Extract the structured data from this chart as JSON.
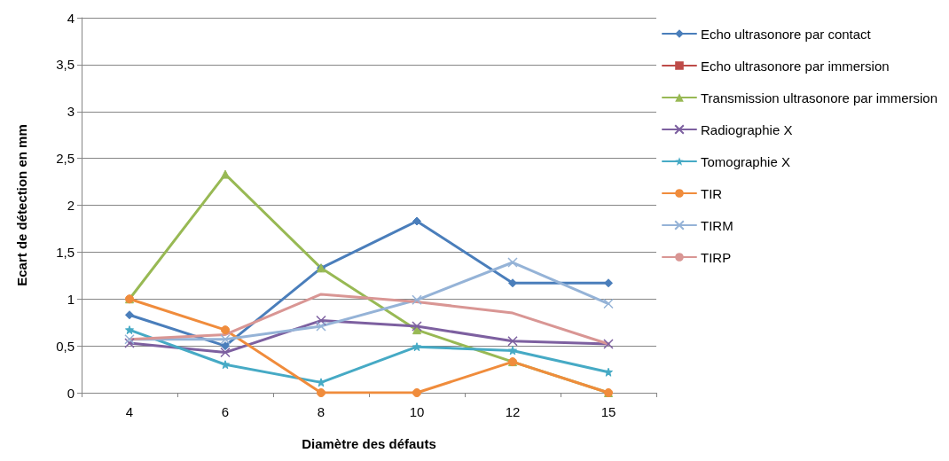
{
  "chart_data": {
    "type": "line",
    "xlabel": "Diamètre des défauts",
    "ylabel": "Ecart de détection en mm",
    "categories": [
      "4",
      "6",
      "8",
      "10",
      "12",
      "15"
    ],
    "ylim": [
      0,
      4
    ],
    "yticks": [
      0,
      {
        "value": 0.5,
        "label": "0,5"
      },
      1,
      {
        "value": 1.5,
        "label": "1,5"
      },
      2,
      {
        "value": 2.5,
        "label": "2,5"
      },
      3,
      {
        "value": 3.5,
        "label": "3,5"
      },
      4
    ],
    "grid": "y",
    "legend": "right",
    "series": [
      {
        "name": "Echo ultrasonore par contact",
        "color": "#4a7ebb",
        "marker": "diamond",
        "values": [
          0.83,
          0.5,
          1.33,
          1.83,
          1.17,
          1.17
        ]
      },
      {
        "name": "Echo ultrasonore par immersion",
        "color": "#be4b48",
        "marker": "square",
        "values": [
          null,
          null,
          null,
          null,
          null,
          null
        ]
      },
      {
        "name": "Transmission ultrasonore par immersion",
        "color": "#98b954",
        "marker": "triangle",
        "values": [
          1,
          2.33,
          1.33,
          0.67,
          0.33,
          0
        ]
      },
      {
        "name": "Radiographie X",
        "color": "#7d60a0",
        "marker": "cross",
        "values": [
          0.53,
          0.43,
          0.77,
          0.71,
          0.55,
          0.52
        ]
      },
      {
        "name": "Tomographie X",
        "color": "#46aac5",
        "marker": "star",
        "values": [
          0.67,
          0.3,
          0.11,
          0.49,
          0.45,
          0.22
        ]
      },
      {
        "name": "TIR",
        "color": "#f08c3c",
        "marker": "circle",
        "values": [
          1,
          0.67,
          0,
          0,
          0.33,
          0
        ]
      },
      {
        "name": "TIRM",
        "color": "#95b3d7",
        "marker": "cross",
        "values": [
          0.57,
          0.57,
          0.71,
          0.99,
          1.39,
          0.95
        ]
      },
      {
        "name": "TIRP",
        "color": "#d99694",
        "marker": "none",
        "values": [
          0.57,
          0.62,
          1.05,
          0.97,
          0.85,
          0.52
        ]
      }
    ]
  }
}
